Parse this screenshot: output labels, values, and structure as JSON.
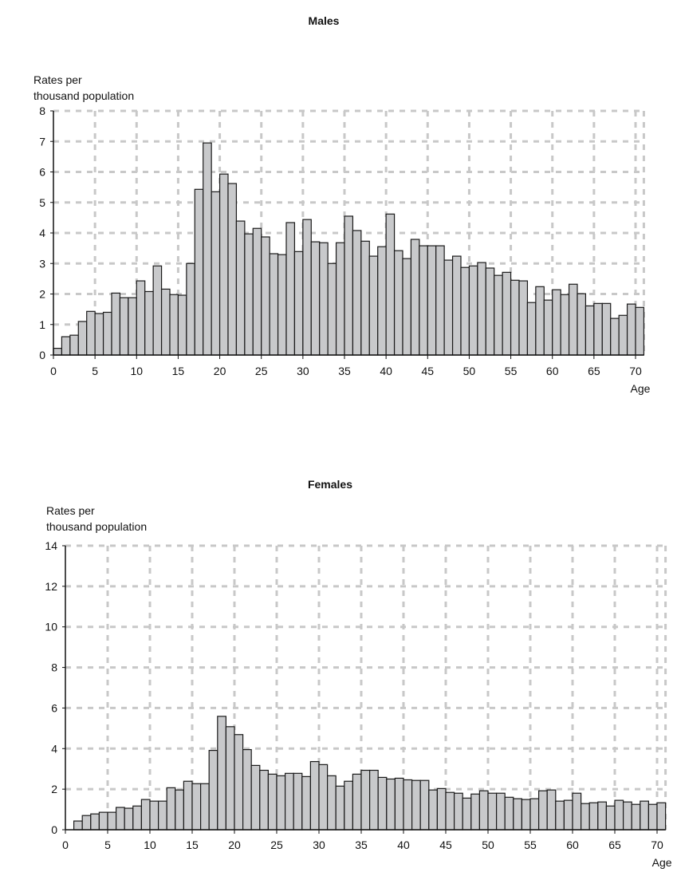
{
  "chart_data": [
    {
      "type": "bar",
      "title": "Males",
      "ylabel": "Rates per thousand population",
      "ylabel_lines": [
        "Rates per",
        "thousand population"
      ],
      "xlabel": "Age",
      "ylim": [
        0,
        8
      ],
      "yticks": [
        0,
        1,
        2,
        3,
        4,
        5,
        6,
        7,
        8
      ],
      "xlim": [
        0,
        70
      ],
      "xticks": [
        0,
        5,
        10,
        15,
        20,
        25,
        30,
        35,
        40,
        45,
        50,
        55,
        60,
        65,
        70
      ],
      "grid": true,
      "bar_color": "#c8c9cb",
      "edge_color": "#1a1a1a",
      "grid_color": "#c8c8c8",
      "x": [
        0,
        1,
        2,
        3,
        4,
        5,
        6,
        7,
        8,
        9,
        10,
        11,
        12,
        13,
        14,
        15,
        16,
        17,
        18,
        19,
        20,
        21,
        22,
        23,
        24,
        25,
        26,
        27,
        28,
        29,
        30,
        31,
        32,
        33,
        34,
        35,
        36,
        37,
        38,
        39,
        40,
        41,
        42,
        43,
        44,
        45,
        46,
        47,
        48,
        49,
        50,
        51,
        52,
        53,
        54,
        55,
        56,
        57,
        58,
        59,
        60,
        61,
        62,
        63,
        64,
        65,
        66,
        67,
        68,
        69,
        70
      ],
      "values": [
        0.22,
        0.6,
        0.65,
        1.1,
        1.43,
        1.36,
        1.4,
        2.03,
        1.88,
        1.88,
        2.43,
        2.08,
        2.92,
        2.16,
        1.98,
        1.96,
        3.0,
        5.43,
        6.95,
        5.35,
        5.93,
        5.62,
        4.39,
        3.97,
        4.15,
        3.87,
        3.32,
        3.29,
        4.34,
        3.39,
        4.44,
        3.71,
        3.68,
        3.0,
        3.68,
        4.55,
        4.08,
        3.73,
        3.24,
        3.55,
        4.62,
        3.42,
        3.16,
        3.79,
        3.58,
        3.58,
        3.58,
        3.11,
        3.24,
        2.87,
        2.92,
        3.03,
        2.85,
        2.61,
        2.71,
        2.45,
        2.43,
        1.72,
        2.24,
        1.8,
        2.14,
        1.98,
        2.32,
        2.01,
        1.61,
        1.69,
        1.69,
        1.2,
        1.3,
        1.67,
        1.56
      ]
    },
    {
      "type": "bar",
      "title": "Females",
      "ylabel": "Rates per thousand population",
      "ylabel_lines": [
        "Rates per",
        "thousand population"
      ],
      "xlabel": "Age",
      "ylim": [
        0,
        14
      ],
      "yticks": [
        0,
        2,
        4,
        6,
        8,
        10,
        12,
        14
      ],
      "xlim": [
        0,
        70
      ],
      "xticks": [
        0,
        5,
        10,
        15,
        20,
        25,
        30,
        35,
        40,
        45,
        50,
        55,
        60,
        65,
        70
      ],
      "grid": true,
      "bar_color": "#c8c9cb",
      "edge_color": "#1a1a1a",
      "grid_color": "#c8c8c8",
      "x": [
        0,
        1,
        2,
        3,
        4,
        5,
        6,
        7,
        8,
        9,
        10,
        11,
        12,
        13,
        14,
        15,
        16,
        17,
        18,
        19,
        20,
        21,
        22,
        23,
        24,
        25,
        26,
        27,
        28,
        29,
        30,
        31,
        32,
        33,
        34,
        35,
        36,
        37,
        38,
        39,
        40,
        41,
        42,
        43,
        44,
        45,
        46,
        47,
        48,
        49,
        50,
        51,
        52,
        53,
        54,
        55,
        56,
        57,
        58,
        59,
        60,
        61,
        62,
        63,
        64,
        65,
        66,
        67,
        68,
        69,
        70
      ],
      "values": [
        0,
        0.43,
        0.7,
        0.78,
        0.86,
        0.86,
        1.1,
        1.06,
        1.17,
        1.49,
        1.41,
        1.41,
        2.07,
        1.96,
        2.39,
        2.27,
        2.27,
        3.91,
        5.59,
        5.08,
        4.69,
        3.95,
        3.17,
        2.93,
        2.74,
        2.66,
        2.78,
        2.78,
        2.62,
        3.36,
        3.21,
        2.66,
        2.15,
        2.39,
        2.74,
        2.93,
        2.93,
        2.58,
        2.5,
        2.54,
        2.46,
        2.43,
        2.43,
        1.96,
        2.03,
        1.84,
        1.8,
        1.56,
        1.76,
        1.92,
        1.8,
        1.8,
        1.6,
        1.53,
        1.49,
        1.53,
        1.92,
        1.96,
        1.41,
        1.45,
        1.8,
        1.29,
        1.33,
        1.37,
        1.17,
        1.45,
        1.37,
        1.25,
        1.41,
        1.25,
        1.33
      ]
    }
  ]
}
